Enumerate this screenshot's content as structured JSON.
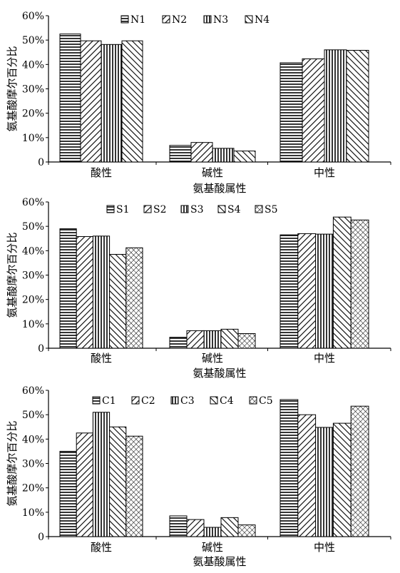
{
  "chart_data": [
    {
      "type": "bar",
      "xlabel": "氨基酸属性",
      "ylabel": "氨基酸摩尔百分比",
      "ylim": [
        0,
        60
      ],
      "yticks": [
        "0",
        "10%",
        "20%",
        "30%",
        "40%",
        "50%",
        "60%"
      ],
      "legend_placement": "top",
      "categories": [
        "酸性",
        "碱性",
        "中性"
      ],
      "series": [
        {
          "name": "N1",
          "pattern": "horizontal",
          "values": [
            52.5,
            6.8,
            40.7
          ]
        },
        {
          "name": "N2",
          "pattern": "diag-down",
          "values": [
            49.7,
            8.0,
            42.3
          ]
        },
        {
          "name": "N3",
          "pattern": "vertical",
          "values": [
            48.2,
            5.6,
            46.0
          ]
        },
        {
          "name": "N4",
          "pattern": "diag-up",
          "values": [
            49.7,
            4.5,
            45.8
          ]
        }
      ]
    },
    {
      "type": "bar",
      "xlabel": "氨基酸属性",
      "ylabel": "氨基酸摩尔百分比",
      "ylim": [
        0,
        60
      ],
      "yticks": [
        "0",
        "10%",
        "20%",
        "30%",
        "40%",
        "50%",
        "60%"
      ],
      "legend_placement": "top",
      "categories": [
        "酸性",
        "碱性",
        "中性"
      ],
      "series": [
        {
          "name": "S1",
          "pattern": "horizontal",
          "values": [
            49.0,
            4.5,
            46.5
          ]
        },
        {
          "name": "S2",
          "pattern": "diag-down",
          "values": [
            45.8,
            7.2,
            47.0
          ]
        },
        {
          "name": "S3",
          "pattern": "vertical",
          "values": [
            46.0,
            7.2,
            46.8
          ]
        },
        {
          "name": "S4",
          "pattern": "diag-up",
          "values": [
            38.5,
            7.8,
            53.8
          ]
        },
        {
          "name": "S5",
          "pattern": "cross",
          "values": [
            41.2,
            6.0,
            52.6
          ]
        }
      ]
    },
    {
      "type": "bar",
      "xlabel": "氨基酸属性",
      "ylabel": "氨基酸摩尔百分比",
      "ylim": [
        0,
        60
      ],
      "yticks": [
        "0",
        "10%",
        "20%",
        "30%",
        "40%",
        "50%",
        "60%"
      ],
      "legend_placement": "top",
      "categories": [
        "酸性",
        "碱性",
        "中性"
      ],
      "series": [
        {
          "name": "C1",
          "pattern": "horizontal",
          "values": [
            35.0,
            8.5,
            56.2
          ]
        },
        {
          "name": "C2",
          "pattern": "diag-down",
          "values": [
            42.5,
            7.0,
            50.0
          ]
        },
        {
          "name": "C3",
          "pattern": "vertical",
          "values": [
            51.0,
            3.8,
            44.8
          ]
        },
        {
          "name": "C4",
          "pattern": "diag-up",
          "values": [
            45.0,
            7.8,
            46.5
          ]
        },
        {
          "name": "C5",
          "pattern": "cross",
          "values": [
            41.2,
            4.8,
            53.5
          ]
        }
      ]
    }
  ]
}
